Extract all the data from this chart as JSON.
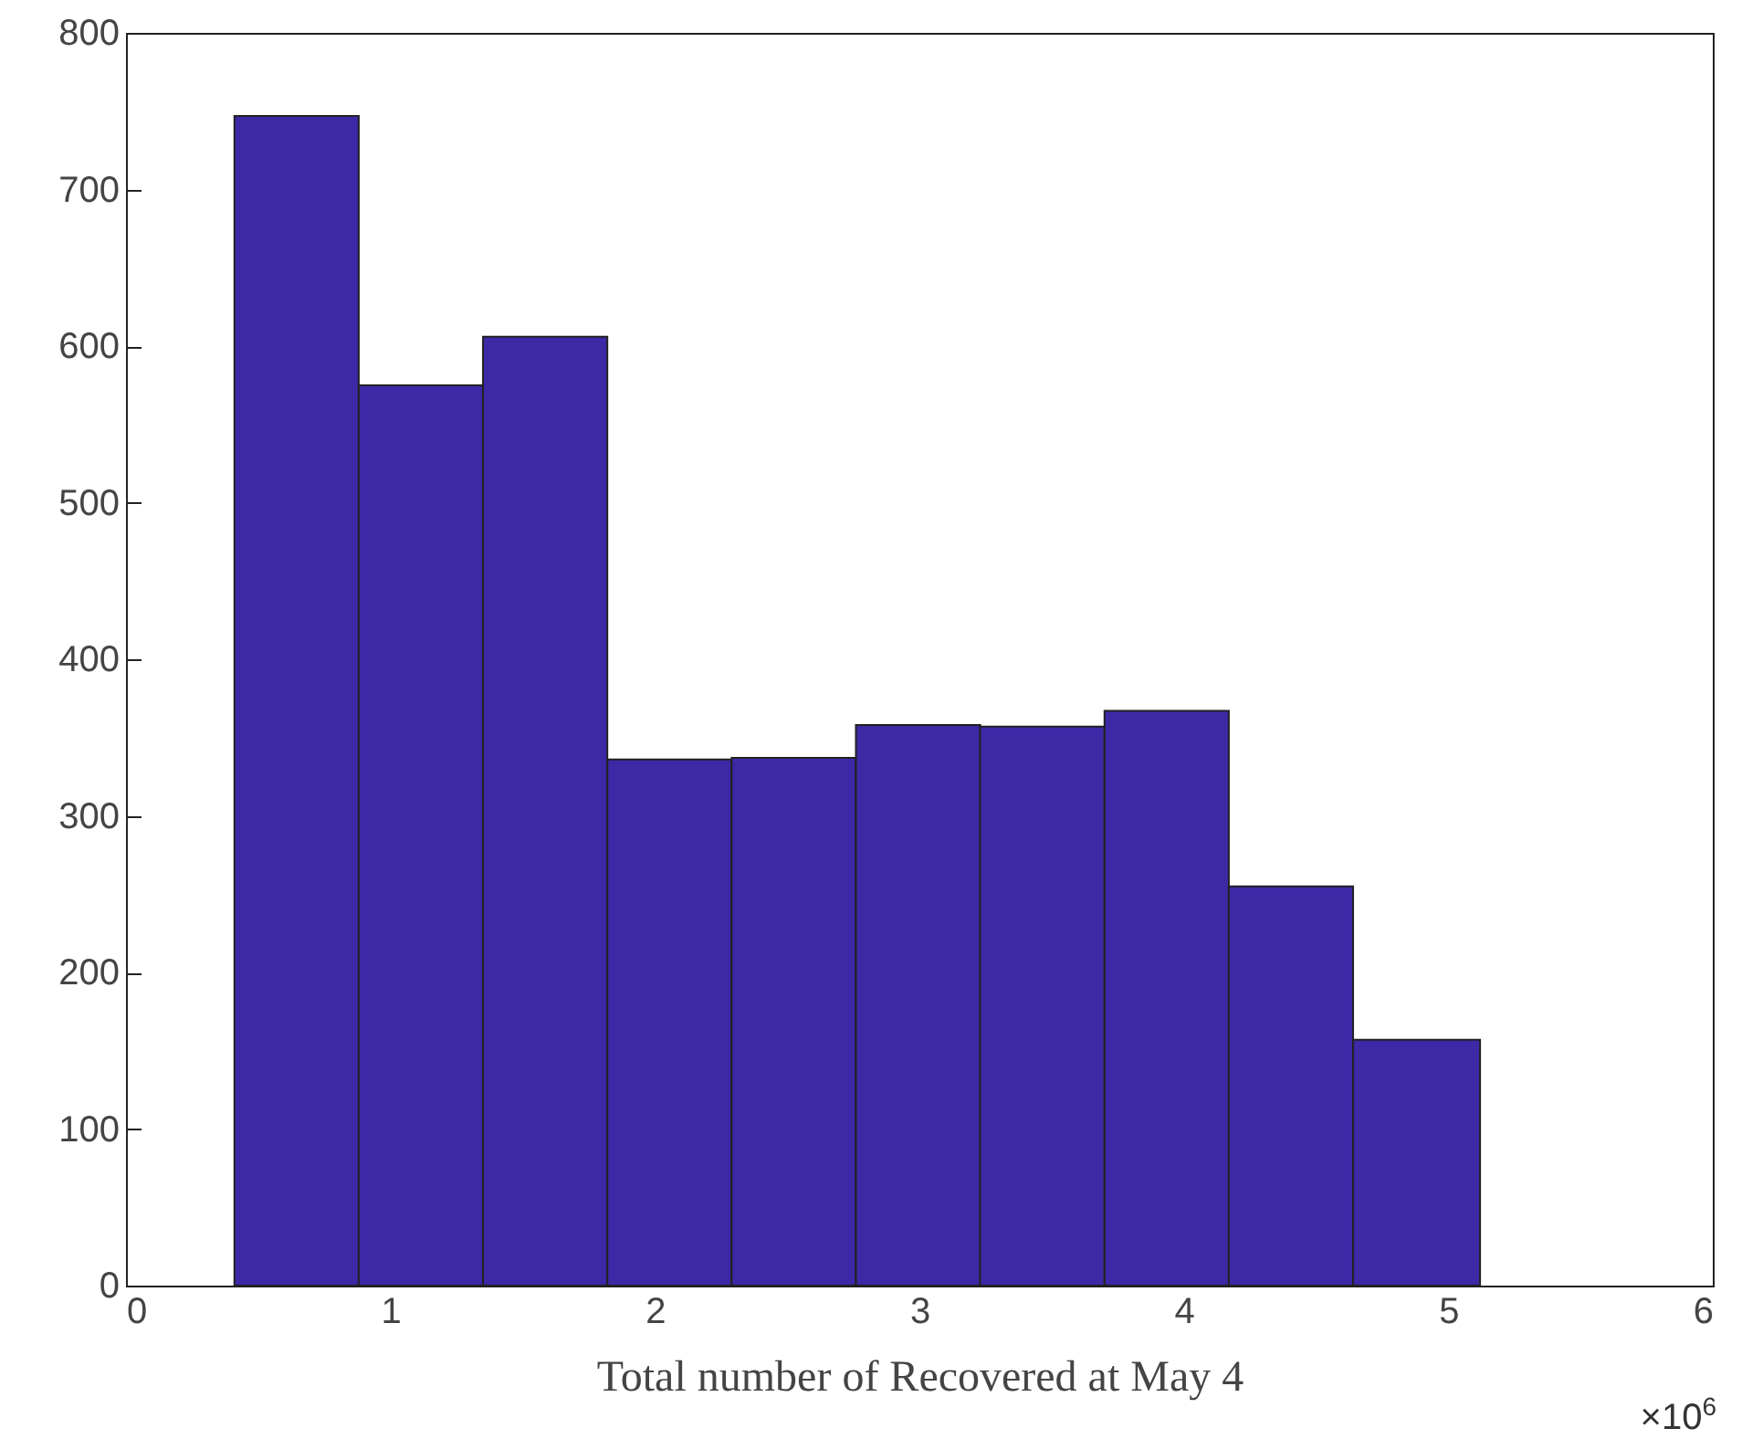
{
  "chart_data": {
    "type": "histogram",
    "xlabel": "Total number of Recovered at May 4",
    "bins": [
      0.41,
      0.88,
      1.35,
      1.82,
      2.29,
      2.76,
      3.23,
      3.7,
      4.17,
      4.64,
      5.12
    ],
    "values": [
      747,
      575,
      606,
      336,
      337,
      358,
      357,
      367,
      255,
      157
    ],
    "color": "#3d28a6",
    "xlim": [
      0,
      6
    ],
    "xticks": [
      0,
      1,
      2,
      3,
      4,
      5,
      6
    ],
    "ylim": [
      0,
      800
    ],
    "yticks": [
      0,
      100,
      200,
      300,
      400,
      500,
      600,
      700,
      800
    ],
    "annotations": [
      "×10$^{6}$"
    ]
  }
}
